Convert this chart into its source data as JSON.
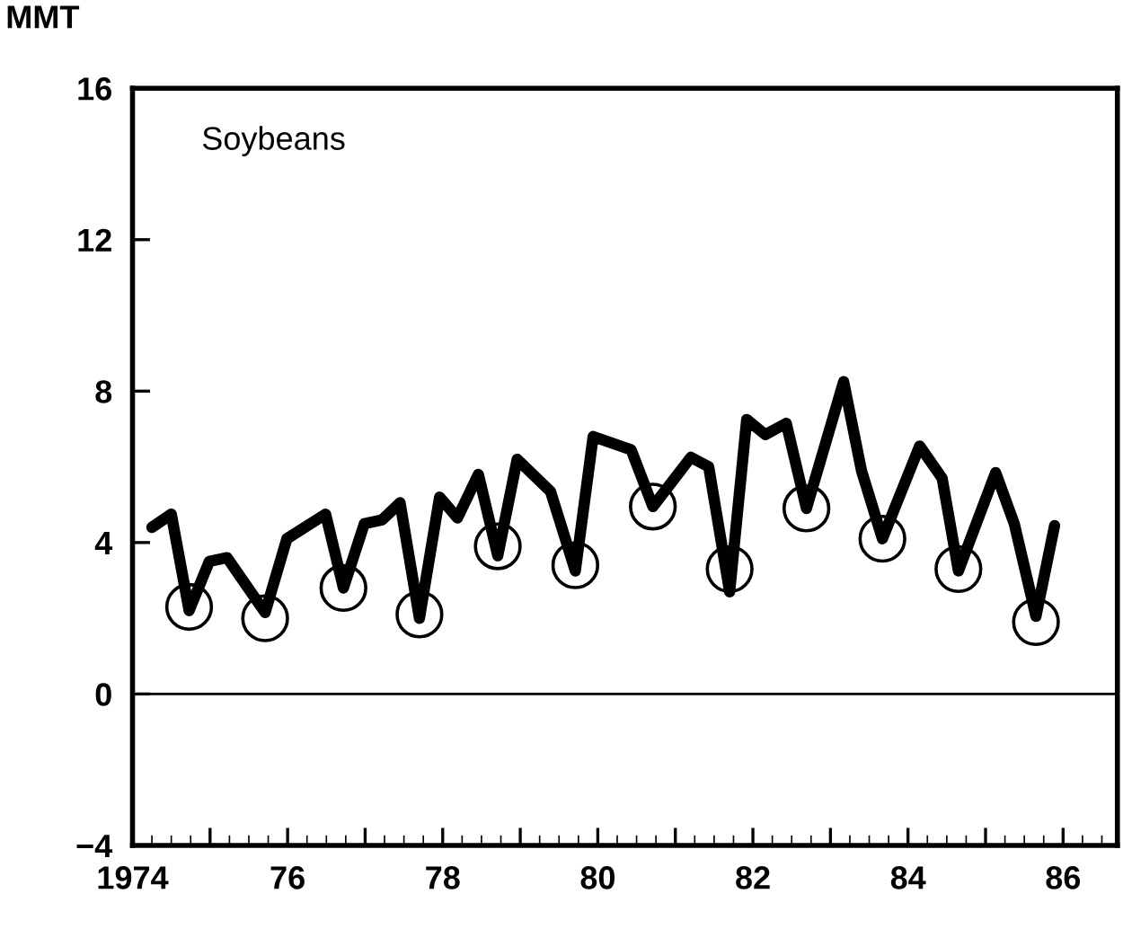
{
  "chart_data": {
    "type": "line",
    "title": "Soybeans",
    "ylabel": "MMT",
    "series": [
      {
        "color": "#000000",
        "x": [
          1974.25,
          1974.5,
          1974.73,
          1974.99,
          1975.22,
          1975.71,
          1975.99,
          1976.49,
          1976.72,
          1976.99,
          1977.22,
          1977.45,
          1977.7,
          1977.96,
          1978.19,
          1978.46,
          1978.71,
          1978.96,
          1979.39,
          1979.71,
          1979.94,
          1980.43,
          1980.71,
          1981.2,
          1981.43,
          1981.7,
          1981.92,
          1982.16,
          1982.43,
          1982.69,
          1983.17,
          1983.4,
          1983.67,
          1984.15,
          1984.44,
          1984.65,
          1985.13,
          1985.37,
          1985.65,
          1985.89
        ],
        "values": [
          4.4,
          4.75,
          2.2,
          3.5,
          3.6,
          2.15,
          4.1,
          4.75,
          2.8,
          4.5,
          4.6,
          5.05,
          2.0,
          5.2,
          4.65,
          5.8,
          3.65,
          6.2,
          5.35,
          3.25,
          6.8,
          6.45,
          4.95,
          6.25,
          6.0,
          2.7,
          7.25,
          6.85,
          7.15,
          4.9,
          8.25,
          5.9,
          4.1,
          6.55,
          5.7,
          3.25,
          5.85,
          4.5,
          2.05,
          4.45
        ]
      },
      {
        "type": "scatter",
        "color": "#000000",
        "marker": "circle",
        "x": [
          1974.73,
          1975.71,
          1976.72,
          1977.7,
          1978.71,
          1979.71,
          1980.71,
          1981.7,
          1982.69,
          1983.67,
          1984.65,
          1985.65
        ],
        "values": [
          2.3,
          2.0,
          2.8,
          2.1,
          3.9,
          3.4,
          4.95,
          3.3,
          4.9,
          4.1,
          3.3,
          1.9
        ]
      }
    ],
    "xlim": [
      1974,
      1986.7
    ],
    "xticks": [
      {
        "value": 1974,
        "label": "1974"
      },
      {
        "value": 1975,
        "label": null
      },
      {
        "value": 1976,
        "label": "76"
      },
      {
        "value": 1977,
        "label": null
      },
      {
        "value": 1978,
        "label": "78"
      },
      {
        "value": 1979,
        "label": null
      },
      {
        "value": 1980,
        "label": "80"
      },
      {
        "value": 1981,
        "label": null
      },
      {
        "value": 1982,
        "label": "82"
      },
      {
        "value": 1983,
        "label": null
      },
      {
        "value": 1984,
        "label": "84"
      },
      {
        "value": 1985,
        "label": null
      },
      {
        "value": 1986,
        "label": "86"
      }
    ],
    "ylim": [
      -4,
      16
    ],
    "yticks": [
      -4,
      0,
      4,
      8,
      12,
      16
    ],
    "ref_lines": [
      {
        "axis": "y",
        "value": 0,
        "color": "#000000"
      }
    ],
    "grid": false,
    "legend": false
  }
}
